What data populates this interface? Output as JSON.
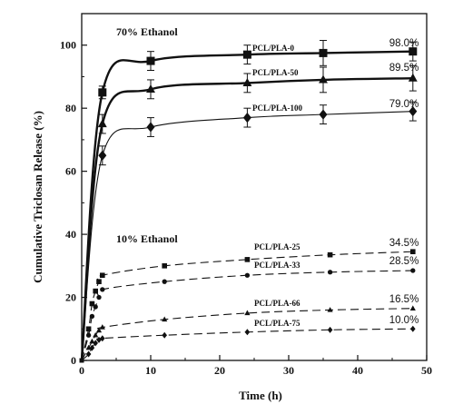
{
  "chart_data": {
    "type": "line",
    "xlabel": "Time (h)",
    "ylabel": "Cumulative Triclosan Release (%)",
    "xlim": [
      0,
      50
    ],
    "ylim": [
      0,
      110
    ],
    "xticks": [
      "0",
      "10",
      "20",
      "30",
      "40",
      "50"
    ],
    "yticks": [
      "0",
      "20",
      "40",
      "60",
      "80",
      "100"
    ],
    "grid": false,
    "annotations": {
      "group_70": "70% Ethanol",
      "group_10": "10% Ethanol"
    },
    "series": [
      {
        "name": "PCL/PLA-0",
        "group": "70% Ethanol",
        "marker": "square",
        "style": "solid-bold",
        "final_label": "98.0%",
        "x": [
          0,
          3,
          10,
          24,
          35,
          48
        ],
        "y": [
          0,
          85,
          95,
          97,
          97.5,
          98
        ],
        "err": [
          0,
          2,
          3,
          3,
          4,
          3
        ]
      },
      {
        "name": "PCL/PLA-50",
        "group": "70% Ethanol",
        "marker": "triangle",
        "style": "solid-bold",
        "final_label": "89.5%",
        "x": [
          0,
          3,
          10,
          24,
          35,
          48
        ],
        "y": [
          0,
          75,
          86,
          88,
          89,
          89.5
        ],
        "err": [
          0,
          3,
          3,
          3,
          4,
          4
        ]
      },
      {
        "name": "PCL/PLA-100",
        "group": "70% Ethanol",
        "marker": "diamond",
        "style": "solid-thin",
        "final_label": "79.0%",
        "x": [
          0,
          3,
          10,
          24,
          35,
          48
        ],
        "y": [
          0,
          65,
          74,
          77,
          78,
          79
        ],
        "err": [
          0,
          3,
          3,
          3,
          3,
          3
        ]
      },
      {
        "name": "PCL/PLA-25",
        "group": "10% Ethanol",
        "marker": "square-small",
        "style": "dashed",
        "final_label": "34.5%",
        "x": [
          0,
          1,
          1.5,
          2,
          2.5,
          3,
          12,
          24,
          36,
          48
        ],
        "y": [
          0,
          10,
          18,
          22,
          25,
          27,
          30,
          32,
          33.5,
          34.5
        ]
      },
      {
        "name": "PCL/PLA-33",
        "group": "10% Ethanol",
        "marker": "circle-small",
        "style": "dashed",
        "final_label": "28.5%",
        "x": [
          0,
          1,
          1.5,
          2,
          2.5,
          3,
          12,
          24,
          36,
          48
        ],
        "y": [
          0,
          8,
          14,
          17,
          20,
          22.5,
          25,
          27,
          28,
          28.5
        ]
      },
      {
        "name": "PCL/PLA-66",
        "group": "10% Ethanol",
        "marker": "triangle-small",
        "style": "dashed",
        "final_label": "16.5%",
        "x": [
          0,
          1,
          1.5,
          2,
          2.5,
          3,
          12,
          24,
          36,
          48
        ],
        "y": [
          0,
          4,
          6,
          8,
          9.5,
          10.5,
          13,
          15,
          16,
          16.5
        ]
      },
      {
        "name": "PCL/PLA-75",
        "group": "10% Ethanol",
        "marker": "diamond-small",
        "style": "dashed",
        "final_label": "10.0%",
        "x": [
          0,
          1,
          1.5,
          2,
          2.5,
          3,
          12,
          24,
          36,
          48
        ],
        "y": [
          0,
          2,
          4,
          5.5,
          6.5,
          7,
          8,
          9,
          9.7,
          10
        ]
      }
    ]
  }
}
